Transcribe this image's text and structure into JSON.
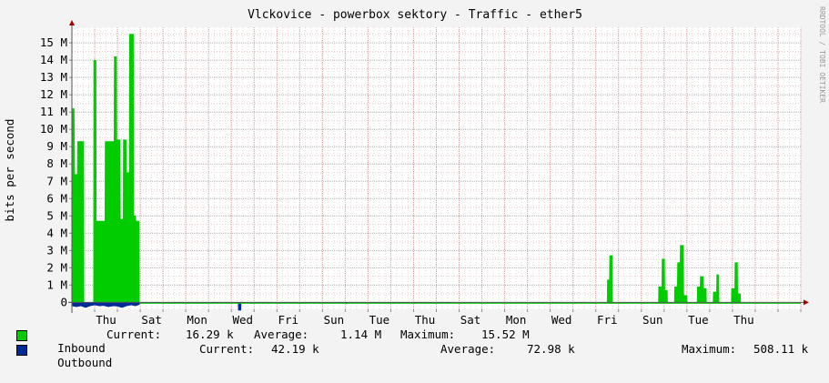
{
  "chart_data": {
    "type": "area",
    "title": "Vlckovice - powerbox sektory - Traffic - ether5",
    "ylabel": "bits per second",
    "watermark": "RRDTOOL / TOBI OETIKER",
    "ylim": [
      -0.4,
      15.9
    ],
    "y_ticks": [
      {
        "v": 0,
        "label": "0"
      },
      {
        "v": 1,
        "label": "1 M"
      },
      {
        "v": 2,
        "label": "2 M"
      },
      {
        "v": 3,
        "label": "3 M"
      },
      {
        "v": 4,
        "label": "4 M"
      },
      {
        "v": 5,
        "label": "5 M"
      },
      {
        "v": 6,
        "label": "6 M"
      },
      {
        "v": 7,
        "label": "7 M"
      },
      {
        "v": 8,
        "label": "8 M"
      },
      {
        "v": 9,
        "label": "9 M"
      },
      {
        "v": 10,
        "label": "10 M"
      },
      {
        "v": 11,
        "label": "11 M"
      },
      {
        "v": 12,
        "label": "12 M"
      },
      {
        "v": 13,
        "label": "13 M"
      },
      {
        "v": 14,
        "label": "14 M"
      },
      {
        "v": 15,
        "label": "15 M"
      }
    ],
    "x_range": [
      0,
      32
    ],
    "x_day_labels": [
      {
        "x": 1.5,
        "label": "Thu"
      },
      {
        "x": 3.5,
        "label": "Sat"
      },
      {
        "x": 5.5,
        "label": "Mon"
      },
      {
        "x": 7.5,
        "label": "Wed"
      },
      {
        "x": 9.5,
        "label": "Fri"
      },
      {
        "x": 11.5,
        "label": "Sun"
      },
      {
        "x": 13.5,
        "label": "Tue"
      },
      {
        "x": 15.5,
        "label": "Thu"
      },
      {
        "x": 17.5,
        "label": "Sat"
      },
      {
        "x": 19.5,
        "label": "Mon"
      },
      {
        "x": 21.5,
        "label": "Wed"
      },
      {
        "x": 23.5,
        "label": "Fri"
      },
      {
        "x": 25.5,
        "label": "Sun"
      },
      {
        "x": 27.5,
        "label": "Tue"
      },
      {
        "x": 29.5,
        "label": "Thu"
      }
    ],
    "series": [
      {
        "name": "Inbound",
        "color": "#00cc00",
        "points": [
          [
            0.0,
            11.2
          ],
          [
            0.1,
            11.2
          ],
          [
            0.12,
            7.4
          ],
          [
            0.24,
            7.4
          ],
          [
            0.25,
            9.3
          ],
          [
            0.52,
            9.3
          ],
          [
            0.53,
            0
          ],
          [
            0.95,
            0
          ],
          [
            0.96,
            14.0
          ],
          [
            1.06,
            14.0
          ],
          [
            1.07,
            4.7
          ],
          [
            1.45,
            4.7
          ],
          [
            1.46,
            9.3
          ],
          [
            1.85,
            9.3
          ],
          [
            1.86,
            14.2
          ],
          [
            1.96,
            14.2
          ],
          [
            1.97,
            9.4
          ],
          [
            2.12,
            9.4
          ],
          [
            2.13,
            4.8
          ],
          [
            2.25,
            4.8
          ],
          [
            2.26,
            9.4
          ],
          [
            2.38,
            9.4
          ],
          [
            2.39,
            7.5
          ],
          [
            2.52,
            7.5
          ],
          [
            2.53,
            15.5
          ],
          [
            2.7,
            15.5
          ],
          [
            2.71,
            5.0
          ],
          [
            2.8,
            5.0
          ],
          [
            2.81,
            4.7
          ],
          [
            2.95,
            4.7
          ],
          [
            2.96,
            0
          ],
          [
            23.5,
            0
          ],
          [
            23.51,
            1.3
          ],
          [
            23.6,
            1.3
          ],
          [
            23.61,
            2.7
          ],
          [
            23.72,
            2.7
          ],
          [
            23.73,
            0
          ],
          [
            25.75,
            0
          ],
          [
            25.76,
            0.9
          ],
          [
            25.9,
            0.9
          ],
          [
            25.91,
            2.5
          ],
          [
            26.02,
            2.5
          ],
          [
            26.03,
            0.7
          ],
          [
            26.14,
            0.7
          ],
          [
            26.15,
            0
          ],
          [
            26.45,
            0
          ],
          [
            26.46,
            0.9
          ],
          [
            26.58,
            0.9
          ],
          [
            26.59,
            2.3
          ],
          [
            26.7,
            2.3
          ],
          [
            26.71,
            3.3
          ],
          [
            26.85,
            3.3
          ],
          [
            26.86,
            0.4
          ],
          [
            27.0,
            0.4
          ],
          [
            27.01,
            0
          ],
          [
            27.45,
            0
          ],
          [
            27.46,
            0.9
          ],
          [
            27.58,
            0.9
          ],
          [
            27.59,
            1.5
          ],
          [
            27.72,
            1.5
          ],
          [
            27.73,
            0.8
          ],
          [
            27.85,
            0.8
          ],
          [
            27.86,
            0
          ],
          [
            28.15,
            0
          ],
          [
            28.16,
            0.6
          ],
          [
            28.3,
            0.6
          ],
          [
            28.31,
            1.6
          ],
          [
            28.4,
            1.6
          ],
          [
            28.41,
            0
          ],
          [
            28.95,
            0
          ],
          [
            28.96,
            0.8
          ],
          [
            29.1,
            0.8
          ],
          [
            29.11,
            2.3
          ],
          [
            29.22,
            2.3
          ],
          [
            29.23,
            0.5
          ],
          [
            29.35,
            0.5
          ],
          [
            29.36,
            0
          ]
        ]
      },
      {
        "name": "Outbound",
        "color": "#002a97",
        "points": [
          [
            0.0,
            0.2
          ],
          [
            0.2,
            0.25
          ],
          [
            0.4,
            0.2
          ],
          [
            0.6,
            0.3
          ],
          [
            0.8,
            0.2
          ],
          [
            1.0,
            0.15
          ],
          [
            1.2,
            0.2
          ],
          [
            1.4,
            0.18
          ],
          [
            1.6,
            0.25
          ],
          [
            1.8,
            0.2
          ],
          [
            2.0,
            0.22
          ],
          [
            2.2,
            0.3
          ],
          [
            2.4,
            0.2
          ],
          [
            2.6,
            0.15
          ],
          [
            2.8,
            0.2
          ],
          [
            2.96,
            0.12
          ],
          [
            2.97,
            0
          ],
          [
            7.3,
            0
          ],
          [
            7.31,
            0.45
          ],
          [
            7.42,
            0.45
          ],
          [
            7.43,
            0
          ],
          [
            12.0,
            0
          ],
          [
            12.05,
            0.08
          ],
          [
            12.15,
            0
          ],
          [
            16.4,
            0
          ],
          [
            16.45,
            0.05
          ],
          [
            16.55,
            0
          ]
        ]
      }
    ],
    "legend": {
      "inbound": {
        "name": "Inbound",
        "color": "#00cc00",
        "current_label": "Current:",
        "current": "16.29 k",
        "average_label": "Average:",
        "average": "1.14 M",
        "maximum_label": "Maximum:",
        "maximum": "15.52 M"
      },
      "outbound": {
        "name": "Outbound",
        "color": "#002a97",
        "current_label": "Current:",
        "current": "42.19 k",
        "average_label": "Average:",
        "average": "72.98 k",
        "maximum_label": "Maximum:",
        "maximum": "508.11 k"
      }
    },
    "grid": true,
    "legend_position": "bottom-left"
  }
}
